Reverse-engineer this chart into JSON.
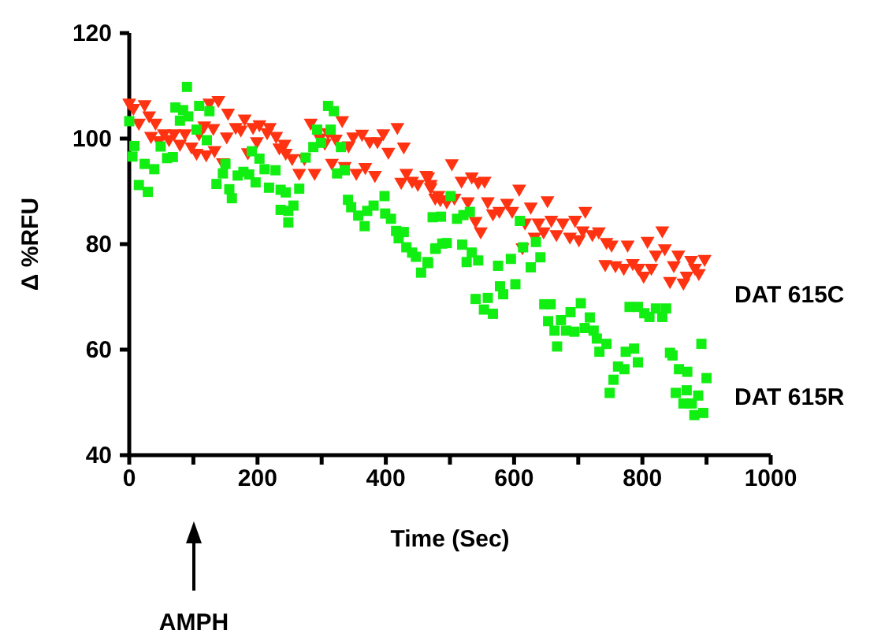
{
  "chart_data": {
    "type": "scatter",
    "xlabel": "Time (Sec)",
    "ylabel": "Δ %RFU",
    "xlim": [
      0,
      1000
    ],
    "ylim": [
      40,
      120
    ],
    "xticks": [
      0,
      {
        "value": 100,
        "label": null
      },
      200,
      {
        "value": 300,
        "label": null
      },
      400,
      {
        "value": 500,
        "label": null
      },
      600,
      {
        "value": 700,
        "label": null
      },
      800,
      {
        "value": 900,
        "label": null
      },
      1000
    ],
    "yticks": [
      40,
      60,
      80,
      100,
      120
    ],
    "grid": false,
    "annotations": [
      "AMPH"
    ],
    "series": [
      {
        "name": "DAT 615C",
        "color": "#ff3311",
        "marker": "triangle",
        "x": [
          0,
          6.5,
          24,
          15,
          31,
          41,
          34,
          46,
          54,
          62,
          70,
          79,
          87,
          97,
          105,
          109,
          117,
          120,
          125,
          131,
          133,
          139,
          146,
          154,
          152,
          166,
          174,
          180,
          185,
          193,
          199,
          203,
          215,
          219,
          229,
          234,
          242,
          244,
          254,
          265,
          273,
          283,
          289,
          297,
          305,
          310,
          316,
          322,
          332,
          336,
          342,
          349,
          354,
          363,
          368,
          375,
          383,
          387,
          396,
          404,
          418,
          428,
          424,
          432,
          441,
          450,
          463,
          470,
          477,
          485,
          466,
          470,
          482,
          495,
          503,
          507,
          518,
          528,
          534,
          544,
          548,
          540,
          554,
          559,
          567,
          577,
          589,
          597,
          608,
          613,
          617,
          626,
          632,
          638,
          646,
          652,
          658,
          666,
          676,
          687,
          695,
          701,
          707,
          711,
          722,
          732,
          744,
          752,
          742,
          758,
          771,
          777,
          785,
          794,
          802,
          808,
          814,
          821,
          831,
          835,
          843,
          849,
          856,
          864,
          869,
          876,
          882,
          888,
          897
        ],
        "values": [
          106.8,
          105.8,
          106.5,
          103,
          104.4,
          103,
          100.5,
          99.7,
          101,
          99.9,
          101,
          99,
          101,
          98.5,
          97.3,
          101,
          102.5,
          97,
          106.8,
          102,
          97.8,
          107.3,
          95.5,
          104.9,
          100.4,
          102.2,
          101.7,
          103.8,
          97.4,
          102.2,
          99.5,
          102.7,
          101.2,
          102.2,
          100.5,
          98.3,
          99,
          97.3,
          96.3,
          93.5,
          96.3,
          103,
          93.5,
          100.2,
          99.2,
          101.2,
          95.4,
          100,
          103.5,
          94.8,
          98.7,
          100.4,
          93.5,
          100.9,
          94.6,
          99.5,
          93.1,
          99.5,
          101,
          97.5,
          102.2,
          98.5,
          91.8,
          93.5,
          92,
          91.4,
          93.1,
          91.4,
          88.8,
          88.5,
          92.8,
          90.8,
          89.3,
          88.1,
          95.3,
          88.8,
          92,
          88.1,
          92.8,
          91.8,
          82.4,
          84.4,
          92,
          88.1,
          85.8,
          86.3,
          87.8,
          86.3,
          90.5,
          79.4,
          84.1,
          87.1,
          81.4,
          84.1,
          82.4,
          88.3,
          84.6,
          81.9,
          84.1,
          81.4,
          84.6,
          80.9,
          82.6,
          86.3,
          81.9,
          82.4,
          80.4,
          79.9,
          76.2,
          76,
          75.5,
          79.9,
          76.4,
          75.5,
          74,
          80.6,
          75.5,
          78,
          82.6,
          79.2,
          73,
          76,
          78,
          72.7,
          74,
          77,
          75.5,
          74.5,
          77.2
        ]
      },
      {
        "name": "DAT 615R",
        "color": "#11ee11",
        "marker": "square",
        "x": [
          0,
          8,
          5,
          15,
          24,
          29,
          39,
          49,
          59,
          68,
          72,
          79,
          84,
          90,
          92,
          105,
          109,
          121,
          125,
          136,
          146,
          150,
          156,
          160,
          169,
          178,
          191,
          187,
          197,
          203,
          211,
          228,
          218,
          236,
          244,
          236,
          248,
          256,
          248,
          265,
          275,
          287,
          293,
          299,
          310,
          319,
          314,
          324,
          330,
          336,
          341,
          346,
          357,
          367,
          371,
          381,
          398,
          399,
          408,
          416,
          420,
          428,
          432,
          441,
          447,
          455,
          465,
          477,
          488,
          473,
          486,
          501,
          511,
          521,
          531,
          478,
          495,
          466,
          519,
          526,
          534,
          544,
          540,
          553,
          559,
          567,
          575,
          583,
          578,
          595,
          602,
          609,
          614,
          626,
          634,
          641,
          647,
          657,
          653,
          663,
          667,
          673,
          681,
          688,
          694,
          704,
          710,
          718,
          724,
          729,
          733,
          744,
          749,
          755,
          762,
          772,
          774,
          787,
          793,
          780,
          793,
          803,
          811,
          821,
          831,
          837,
          843,
          847,
          857,
          870,
          852,
          869,
          864,
          877,
          887,
          881,
          895,
          900,
          892
        ],
        "values": [
          103.3,
          98.6,
          96.6,
          91.2,
          95.2,
          89.9,
          94.2,
          98.5,
          96.3,
          96.5,
          105.9,
          103.4,
          105.4,
          109.8,
          104.2,
          101.7,
          106.2,
          99.7,
          105.2,
          91.4,
          93.4,
          95.2,
          90.4,
          88.7,
          93,
          93.7,
          97.6,
          93.2,
          91.7,
          96.2,
          94.2,
          94,
          90.7,
          90.3,
          89.8,
          86.5,
          86.3,
          87.3,
          84.1,
          90.5,
          96.4,
          98.4,
          101.7,
          99.2,
          106.2,
          105.2,
          101.7,
          93.4,
          98.4,
          94,
          88.4,
          87,
          85.4,
          83.4,
          86.3,
          87.3,
          89.1,
          85.8,
          84.8,
          82.5,
          81.1,
          82.3,
          79.4,
          78.4,
          77.6,
          74.6,
          76.6,
          79.1,
          80.1,
          85.1,
          85.2,
          89.1,
          84.8,
          85.5,
          86.1,
          79.2,
          80.2,
          76.4,
          79.9,
          76.6,
          78.4,
          76.9,
          69.6,
          67.6,
          69.8,
          66.8,
          75.9,
          70.5,
          72,
          77.2,
          72.4,
          84.4,
          79.4,
          75.6,
          80.4,
          77.5,
          68.6,
          68.6,
          65.4,
          63.6,
          60.6,
          65.6,
          63.6,
          67.1,
          63.4,
          68.8,
          64.1,
          66.1,
          63.6,
          62.1,
          59.6,
          61.1,
          51.8,
          54.3,
          56.8,
          56.3,
          59.6,
          60.2,
          57.6,
          68.1,
          68.1,
          66.9,
          66.2,
          67.8,
          66.2,
          67.8,
          59.4,
          58.9,
          56.3,
          55.8,
          51.8,
          52.3,
          49.8,
          49.8,
          51.3,
          47.6,
          48,
          54.6,
          61.1
        ]
      }
    ]
  }
}
